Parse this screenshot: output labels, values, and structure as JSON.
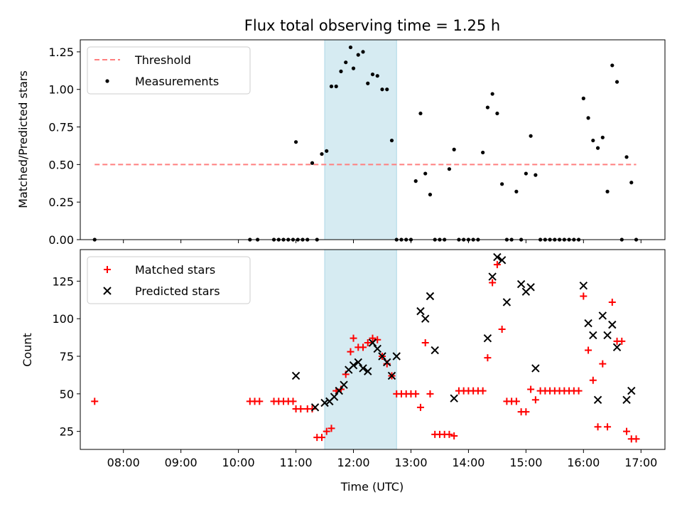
{
  "figure": {
    "title": "Flux total observing time = 1.25 h",
    "xlabel": "Time (UTC)"
  },
  "chart_data": [
    {
      "type": "scatter",
      "title": "Flux total observing time = 1.25 h",
      "ylabel": "Matched/Predicted stars",
      "xlim": [
        "07:15",
        "17:25"
      ],
      "ylim": [
        0,
        1.33
      ],
      "yticks": [
        "0.00",
        "0.25",
        "0.50",
        "0.75",
        "1.00",
        "1.25"
      ],
      "yticks_values": [
        0,
        0.25,
        0.5,
        0.75,
        1.0,
        1.25
      ],
      "shaded_span": [
        "11:30",
        "12:45"
      ],
      "shaded_color": "#add8e6",
      "legend_position": "upper-left",
      "series": [
        {
          "name": "Threshold",
          "kind": "dashed-line",
          "color": "#ff7f7f",
          "x": [
            "07:30",
            "16:55"
          ],
          "y": [
            0.5,
            0.5
          ]
        },
        {
          "name": "Measurements",
          "kind": "points",
          "color": "#000000",
          "x": [
            "07:30",
            "10:12",
            "10:20",
            "10:37",
            "10:42",
            "10:47",
            "10:52",
            "10:57",
            "11:00",
            "11:02",
            "11:07",
            "11:12",
            "11:17",
            "11:22",
            "11:27",
            "11:32",
            "11:37",
            "11:42",
            "11:47",
            "11:52",
            "11:57",
            "12:00",
            "12:05",
            "12:10",
            "12:15",
            "12:20",
            "12:25",
            "12:30",
            "12:35",
            "12:40",
            "12:45",
            "12:50",
            "12:55",
            "13:00",
            "13:05",
            "13:10",
            "13:15",
            "13:20",
            "13:25",
            "13:30",
            "13:35",
            "13:40",
            "13:45",
            "13:50",
            "13:55",
            "14:00",
            "14:05",
            "14:10",
            "14:15",
            "14:20",
            "14:25",
            "14:30",
            "14:35",
            "14:40",
            "14:45",
            "14:50",
            "14:55",
            "15:00",
            "15:05",
            "15:10",
            "15:15",
            "15:20",
            "15:25",
            "15:30",
            "15:35",
            "15:40",
            "15:45",
            "15:50",
            "15:55",
            "16:00",
            "16:05",
            "16:10",
            "16:15",
            "16:20",
            "16:25",
            "16:30",
            "16:35",
            "16:40",
            "16:45",
            "16:50",
            "16:55"
          ],
          "y": [
            0,
            0,
            0,
            0,
            0,
            0,
            0,
            0,
            0.65,
            0,
            0,
            0,
            0.51,
            0,
            0.57,
            0.59,
            1.02,
            1.02,
            1.12,
            1.18,
            1.28,
            1.14,
            1.23,
            1.25,
            1.04,
            1.1,
            1.09,
            1.0,
            1.0,
            0.66,
            0,
            0,
            0,
            0,
            0.39,
            0.84,
            0.44,
            0.3,
            0,
            0,
            0,
            0.47,
            0.6,
            0,
            0,
            0,
            0,
            0,
            0.58,
            0.88,
            0.97,
            0.84,
            0.37,
            0,
            0,
            0.32,
            0,
            0.44,
            0.69,
            0.43,
            0,
            0,
            0,
            0,
            0,
            0,
            0,
            0,
            0,
            0.94,
            0.81,
            0.66,
            0.61,
            0.68,
            0.32,
            1.16,
            1.05,
            0,
            0.55,
            0.38,
            0
          ]
        }
      ]
    },
    {
      "type": "scatter",
      "ylabel": "Count",
      "xlim": [
        "07:15",
        "17:25"
      ],
      "ylim": [
        13,
        146
      ],
      "yticks": [
        "25",
        "50",
        "75",
        "100",
        "125"
      ],
      "yticks_values": [
        25,
        50,
        75,
        100,
        125
      ],
      "xticks": [
        "08:00",
        "09:00",
        "10:00",
        "11:00",
        "12:00",
        "13:00",
        "14:00",
        "15:00",
        "16:00",
        "17:00"
      ],
      "shaded_span": [
        "11:30",
        "12:45"
      ],
      "shaded_color": "#add8e6",
      "legend_position": "upper-left",
      "series": [
        {
          "name": "Matched stars",
          "marker": "+",
          "color": "#ff0000",
          "x": [
            "07:30",
            "10:12",
            "10:17",
            "10:22",
            "10:37",
            "10:42",
            "10:47",
            "10:52",
            "10:57",
            "11:00",
            "11:05",
            "11:12",
            "11:17",
            "11:22",
            "11:27",
            "11:32",
            "11:37",
            "11:42",
            "11:47",
            "11:52",
            "11:57",
            "12:00",
            "12:05",
            "12:10",
            "12:15",
            "12:20",
            "12:25",
            "12:30",
            "12:35",
            "12:40",
            "12:45",
            "12:50",
            "12:55",
            "13:00",
            "13:05",
            "13:10",
            "13:15",
            "13:20",
            "13:25",
            "13:30",
            "13:35",
            "13:40",
            "13:45",
            "13:50",
            "13:55",
            "14:00",
            "14:05",
            "14:10",
            "14:15",
            "14:20",
            "14:25",
            "14:30",
            "14:35",
            "14:40",
            "14:45",
            "14:50",
            "14:55",
            "15:00",
            "15:05",
            "15:10",
            "15:15",
            "15:20",
            "15:25",
            "15:30",
            "15:35",
            "15:40",
            "15:45",
            "15:50",
            "15:55",
            "16:00",
            "16:05",
            "16:10",
            "16:15",
            "16:20",
            "16:25",
            "16:30",
            "16:35",
            "16:40",
            "16:45",
            "16:50",
            "16:55"
          ],
          "y": [
            45,
            45,
            45,
            45,
            45,
            45,
            45,
            45,
            45,
            40,
            40,
            40,
            40,
            21,
            21,
            25,
            27,
            52,
            53,
            63,
            78,
            87,
            81,
            81,
            84,
            87,
            86,
            75,
            70,
            62,
            50,
            50,
            50,
            50,
            50,
            41,
            84,
            50,
            23,
            23,
            23,
            23,
            22,
            52,
            52,
            52,
            52,
            52,
            52,
            74,
            124,
            136,
            93,
            45,
            45,
            45,
            38,
            38,
            53,
            46,
            52,
            52,
            52,
            52,
            52,
            52,
            52,
            52,
            52,
            115,
            79,
            59,
            28,
            70,
            28,
            111,
            85,
            85,
            25,
            20,
            20
          ]
        },
        {
          "name": "Predicted stars",
          "marker": "x",
          "color": "#000000",
          "x": [
            "11:00",
            "11:20",
            "11:30",
            "11:35",
            "11:40",
            "11:45",
            "11:50",
            "11:55",
            "12:00",
            "12:05",
            "12:10",
            "12:15",
            "12:20",
            "12:25",
            "12:30",
            "12:35",
            "12:40",
            "12:45",
            "13:10",
            "13:15",
            "13:20",
            "13:25",
            "13:45",
            "14:20",
            "14:25",
            "14:30",
            "14:35",
            "14:40",
            "14:55",
            "15:00",
            "15:05",
            "15:10",
            "16:00",
            "16:05",
            "16:10",
            "16:15",
            "16:20",
            "16:25",
            "16:30",
            "16:35",
            "16:45",
            "16:50"
          ],
          "y": [
            62,
            41,
            44,
            45,
            48,
            52,
            56,
            66,
            69,
            71,
            67,
            65,
            84,
            80,
            75,
            71,
            62,
            75,
            105,
            100,
            115,
            79,
            47,
            87,
            128,
            141,
            139,
            111,
            123,
            118,
            121,
            67,
            122,
            97,
            89,
            46,
            102,
            89,
            96,
            81,
            46,
            52
          ]
        }
      ]
    }
  ]
}
